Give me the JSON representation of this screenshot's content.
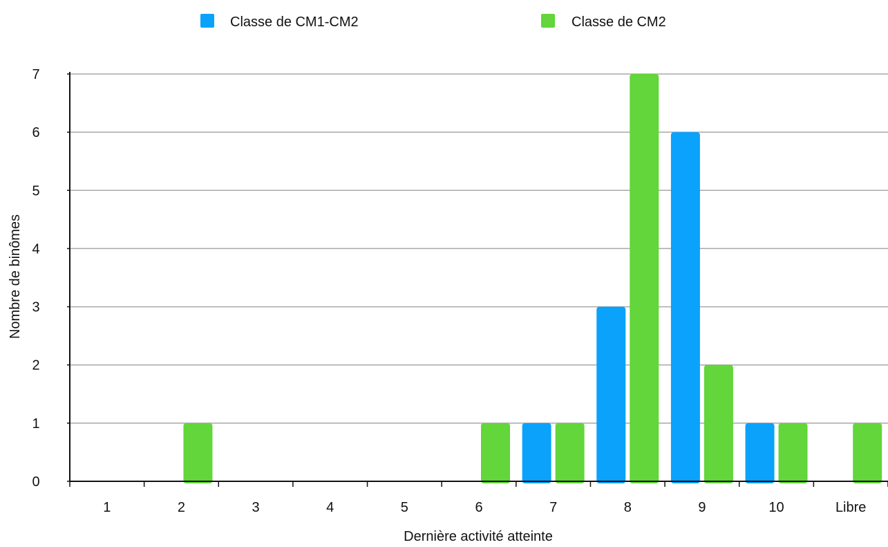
{
  "chart_data": {
    "type": "bar",
    "categories": [
      "1",
      "2",
      "3",
      "4",
      "5",
      "6",
      "7",
      "8",
      "9",
      "10",
      "Libre"
    ],
    "series": [
      {
        "name": "Classe de CM1-CM2",
        "color": "#0aa2fb",
        "values": [
          0,
          0,
          0,
          0,
          0,
          0,
          1,
          3,
          6,
          1,
          0
        ]
      },
      {
        "name": "Classe de CM2",
        "color": "#62d63a",
        "values": [
          0,
          1,
          0,
          0,
          0,
          1,
          1,
          7,
          2,
          1,
          1
        ]
      }
    ],
    "xlabel": "Dernière activité atteinte",
    "ylabel": "Nombre de binômes",
    "ylim": [
      0,
      7
    ],
    "yticks": [
      0,
      1,
      2,
      3,
      4,
      5,
      6,
      7
    ],
    "grid": true,
    "legend_position": "top-center"
  }
}
